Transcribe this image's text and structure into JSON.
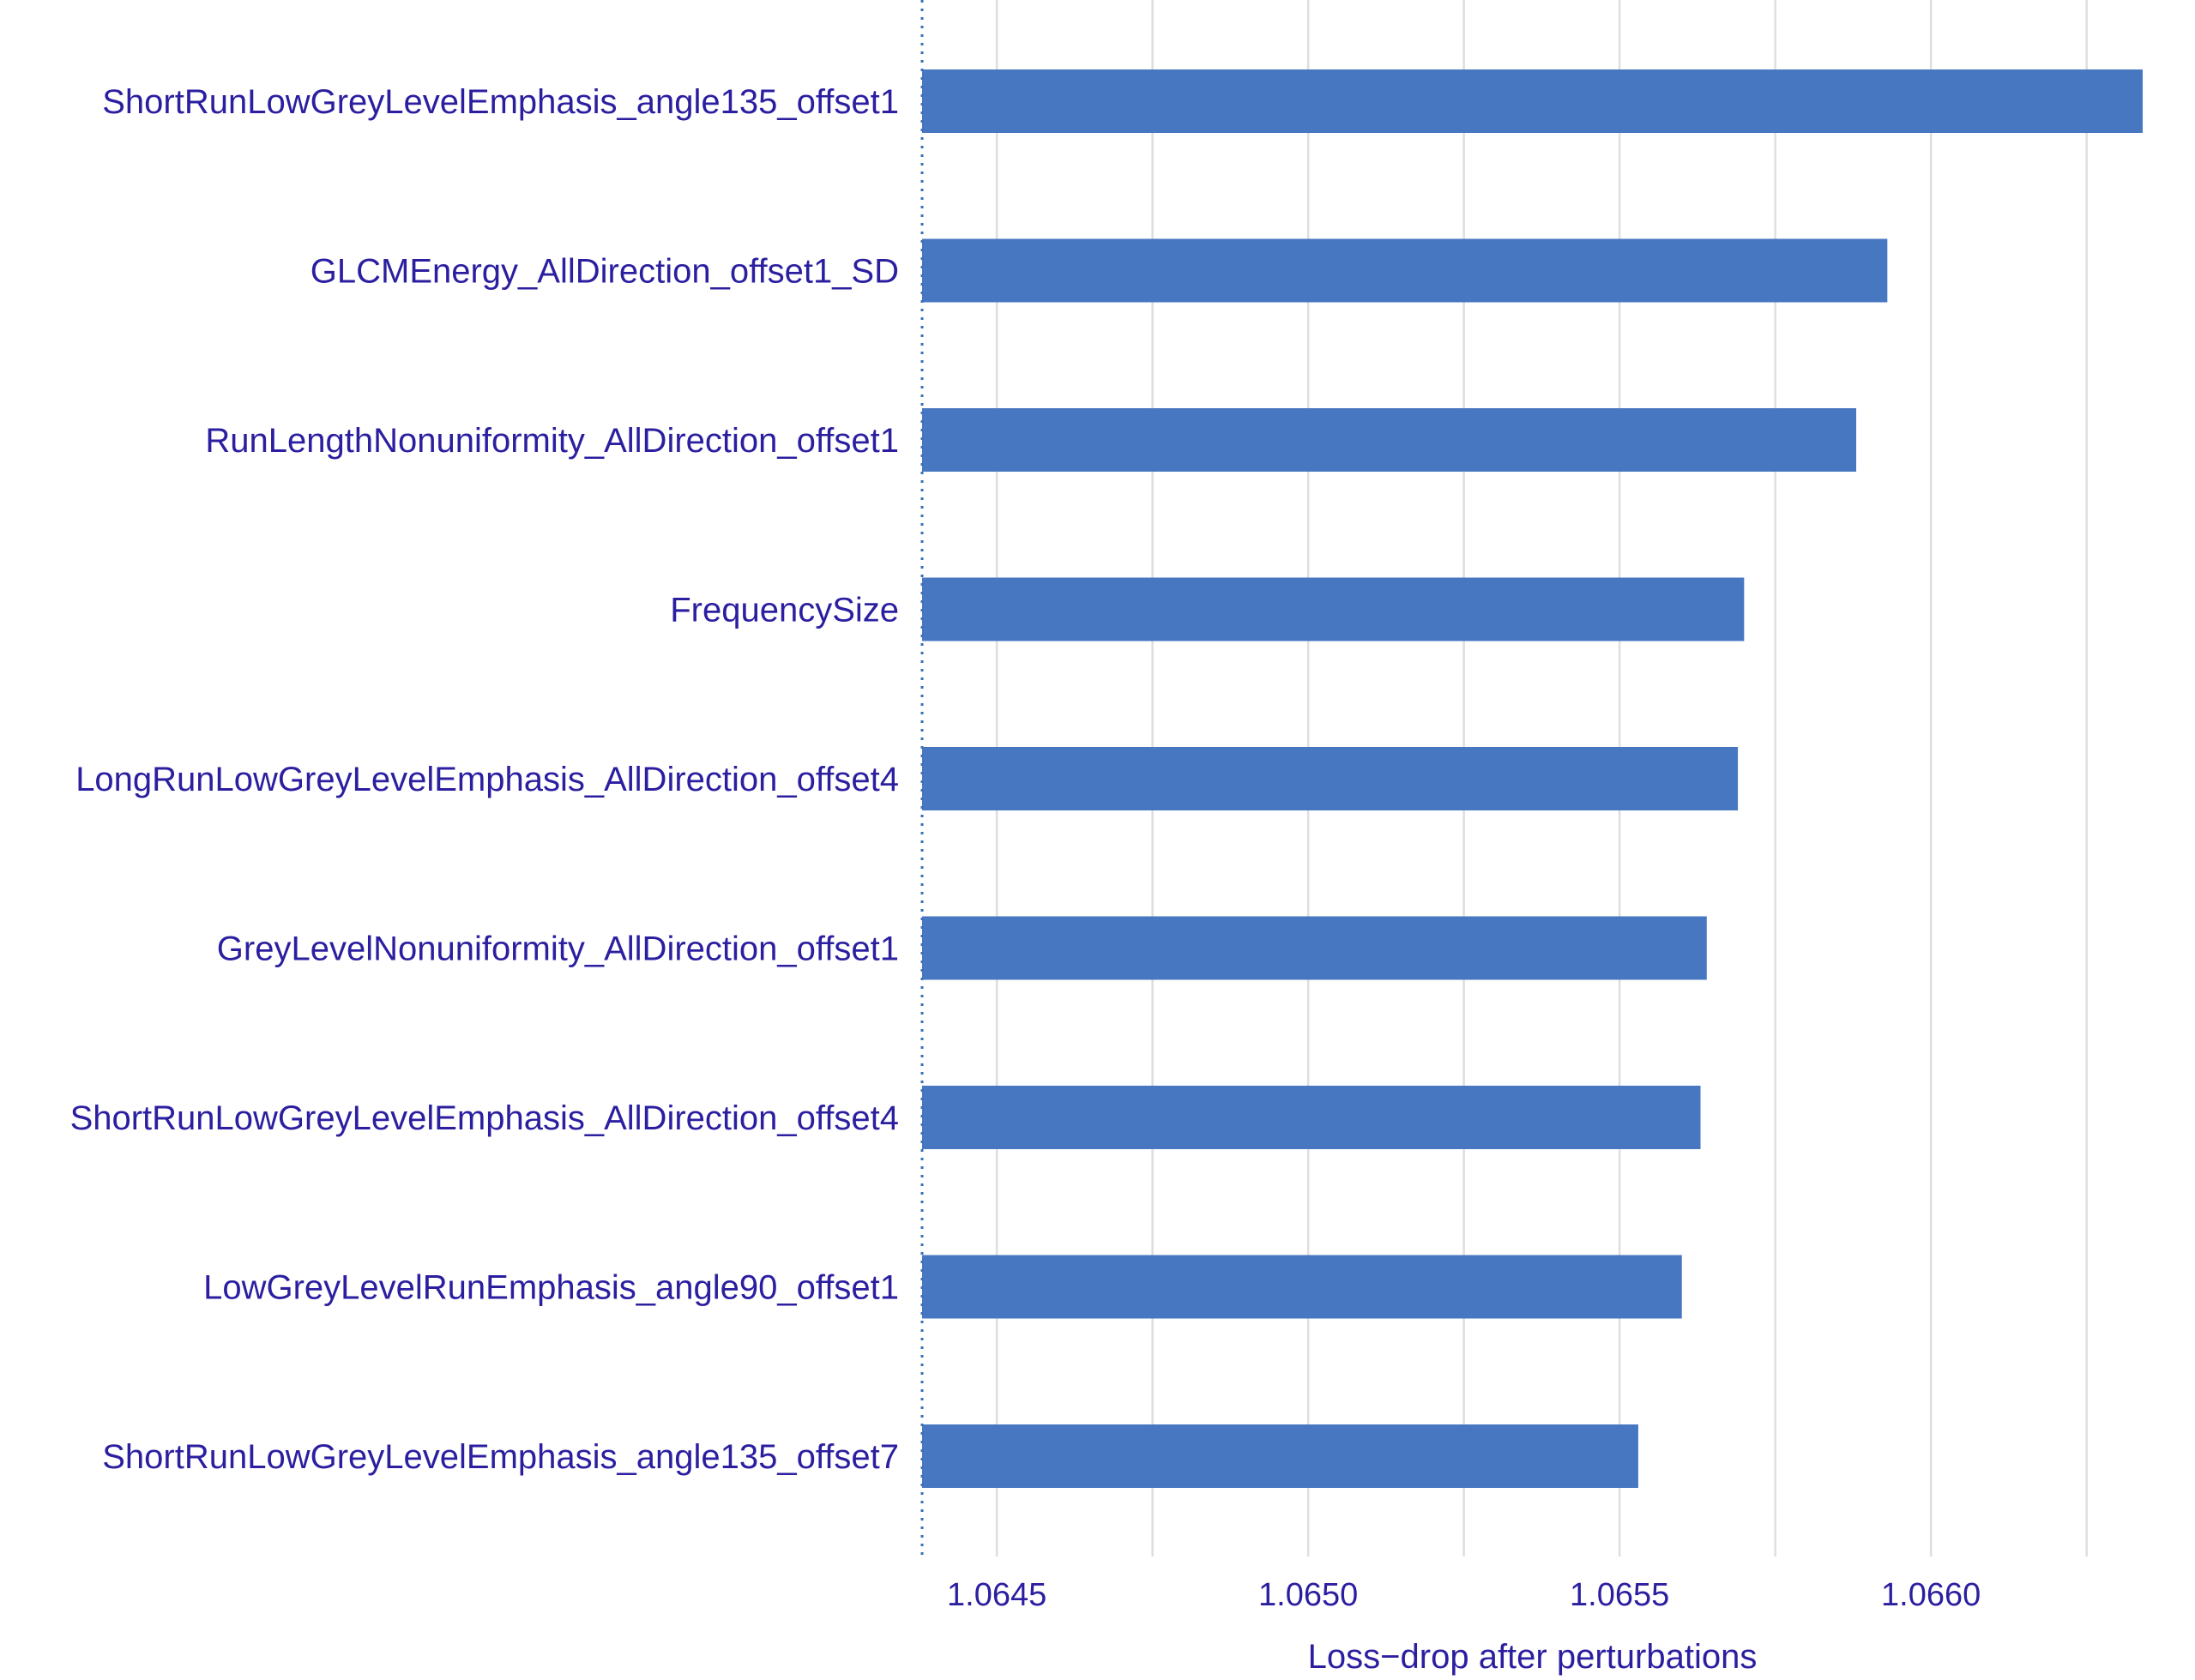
{
  "chart_data": {
    "type": "bar",
    "orientation": "horizontal",
    "categories": [
      "ShortRunLowGreyLevelEmphasis_angle135_offset1",
      "GLCMEnergy_AllDirection_offset1_SD",
      "RunLengthNonuniformity_AllDirection_offset1",
      "FrequencySize",
      "LongRunLowGreyLevelEmphasis_AllDirection_offset4",
      "GreyLevelNonuniformity_AllDirection_offset1",
      "ShortRunLowGreyLevelEmphasis_AllDirection_offset4",
      "LowGreyLevelRunEmphasis_angle90_offset1",
      "ShortRunLowGreyLevelEmphasis_angle135_offset7"
    ],
    "values": [
      1.06634,
      1.06593,
      1.06588,
      1.0657,
      1.06569,
      1.06564,
      1.06563,
      1.0656,
      1.06553
    ],
    "baseline": 1.06438,
    "xlim": [
      1.06438,
      1.06634
    ],
    "xticks": [
      1.0645,
      1.065,
      1.0655,
      1.066
    ],
    "xtick_labels": [
      "1.0645",
      "1.0650",
      "1.0655",
      "1.0660"
    ],
    "xlabel": "Loss−drop after perturbations",
    "ylabel": "",
    "title": "",
    "grid": "vertical",
    "bar_color": "#4677c0",
    "label_color": "#2b1fa0",
    "grid_color": "#dedede",
    "baseline_color": "#3a6fb7"
  }
}
